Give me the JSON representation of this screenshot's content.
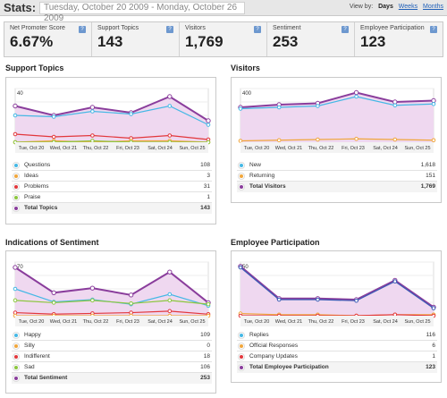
{
  "header": {
    "stats_label": "Stats:",
    "date_range": "Tuesday, October 20 2009 - Monday, October 26 2009",
    "view_by_label": "View by:",
    "view_days": "Days",
    "view_weeks": "Weeks",
    "view_months": "Months"
  },
  "kpis": [
    {
      "label": "Net Promoter Score",
      "value": "6.67%",
      "help": "?"
    },
    {
      "label": "Support Topics",
      "value": "143",
      "help": "?"
    },
    {
      "label": "Visitors",
      "value": "1,769",
      "help": "?"
    },
    {
      "label": "Sentiment",
      "value": "253",
      "help": "?"
    },
    {
      "label": "Employee Participation",
      "value": "123",
      "help": "?"
    }
  ],
  "colors": {
    "purple": "#8a3d9c",
    "blue": "#45b8e5",
    "orange": "#f0a63c",
    "red": "#e2373c",
    "green": "#8cc63f",
    "navy": "#3a5bb5",
    "fill": "#efd8f0"
  },
  "panels": {
    "support": {
      "title": "Support Topics",
      "legend": [
        {
          "label": "Questions",
          "value": "108",
          "color": "#45b8e5"
        },
        {
          "label": "Ideas",
          "value": "3",
          "color": "#f0a63c"
        },
        {
          "label": "Problems",
          "value": "31",
          "color": "#e2373c"
        },
        {
          "label": "Praise",
          "value": "1",
          "color": "#8cc63f"
        }
      ],
      "total_label": "Total Topics",
      "total_value": "143"
    },
    "visitors": {
      "title": "Visitors",
      "legend": [
        {
          "label": "New",
          "value": "1,618",
          "color": "#45b8e5"
        },
        {
          "label": "Returning",
          "value": "151",
          "color": "#f0a63c"
        }
      ],
      "total_label": "Total Visitors",
      "total_value": "1,769"
    },
    "sentiment": {
      "title": "Indications of Sentiment",
      "legend": [
        {
          "label": "Happy",
          "value": "109",
          "color": "#45b8e5"
        },
        {
          "label": "Silly",
          "value": "0",
          "color": "#f0a63c"
        },
        {
          "label": "Indifferent",
          "value": "18",
          "color": "#e2373c"
        },
        {
          "label": "Sad",
          "value": "106",
          "color": "#8cc63f"
        }
      ],
      "total_label": "Total Sentiment",
      "total_value": "253"
    },
    "employee": {
      "title": "Employee Participation",
      "legend": [
        {
          "label": "Replies",
          "value": "116",
          "color": "#45b8e5"
        },
        {
          "label": "Official Responses",
          "value": "6",
          "color": "#f0a63c"
        },
        {
          "label": "Company Updates",
          "value": "1",
          "color": "#e2373c"
        }
      ],
      "total_label": "Total Employee Participation",
      "total_value": "123"
    }
  },
  "chart_data": [
    {
      "type": "area",
      "categories": [
        "Tue, Oct 20",
        "Wed, Oct 21",
        "Thu, Oct 22",
        "Fri, Oct 23",
        "Sat, Oct 24",
        "Sun, Oct 25"
      ],
      "y_ticks": [
        "40",
        "0"
      ],
      "ylim": [
        0,
        40
      ],
      "series": [
        {
          "name": "Total Topics",
          "values": [
            27,
            20,
            26,
            22,
            34,
            16
          ],
          "color": "#8a3d9c",
          "fill": true
        },
        {
          "name": "Questions",
          "values": [
            20,
            19,
            23,
            21,
            27,
            13
          ],
          "color": "#45b8e5"
        },
        {
          "name": "Problems",
          "values": [
            6,
            4,
            5,
            3,
            5,
            2
          ],
          "color": "#e2373c"
        },
        {
          "name": "Ideas",
          "values": [
            0,
            1,
            0,
            1,
            1,
            0
          ],
          "color": "#f0a63c"
        },
        {
          "name": "Praise",
          "values": [
            0,
            0,
            1,
            0,
            0,
            0
          ],
          "color": "#8cc63f"
        }
      ]
    },
    {
      "type": "area",
      "categories": [
        "Tue, Oct 20",
        "Wed, Oct 21",
        "Thu, Oct 22",
        "Fri, Oct 23",
        "Sat, Oct 24",
        "Sun, Oct 25"
      ],
      "y_ticks": [
        "400",
        "200",
        "0"
      ],
      "ylim": [
        0,
        400
      ],
      "series": [
        {
          "name": "Total Visitors",
          "values": [
            260,
            280,
            290,
            370,
            300,
            310
          ],
          "color": "#8a3d9c",
          "fill": true
        },
        {
          "name": "New",
          "values": [
            250,
            260,
            270,
            340,
            275,
            285
          ],
          "color": "#45b8e5"
        },
        {
          "name": "Returning",
          "values": [
            10,
            15,
            20,
            25,
            20,
            15
          ],
          "color": "#f0a63c"
        }
      ]
    },
    {
      "type": "area",
      "categories": [
        "Tue, Oct 20",
        "Wed, Oct 21",
        "Thu, Oct 22",
        "Fri, Oct 23",
        "Sat, Oct 24",
        "Sun, Oct 25"
      ],
      "y_ticks": [
        "70",
        "0"
      ],
      "ylim": [
        0,
        70
      ],
      "series": [
        {
          "name": "Total Sentiment",
          "values": [
            63,
            30,
            36,
            27,
            57,
            17
          ],
          "color": "#8a3d9c",
          "fill": true
        },
        {
          "name": "Happy",
          "values": [
            35,
            18,
            21,
            15,
            28,
            13
          ],
          "color": "#45b8e5"
        },
        {
          "name": "Sad",
          "values": [
            20,
            17,
            20,
            16,
            20,
            15
          ],
          "color": "#8cc63f"
        },
        {
          "name": "Indifferent",
          "values": [
            4,
            2,
            3,
            4,
            6,
            2
          ],
          "color": "#e2373c"
        },
        {
          "name": "Silly",
          "values": [
            0,
            0,
            0,
            0,
            0,
            0
          ],
          "color": "#f0a63c"
        }
      ]
    },
    {
      "type": "area",
      "categories": [
        "Tue, Oct 20",
        "Wed, Oct 21",
        "Thu, Oct 22",
        "Fri, Oct 23",
        "Sat, Oct 24",
        "Sun, Oct 25"
      ],
      "y_ticks": [
        "50",
        "0"
      ],
      "ylim": [
        0,
        50
      ],
      "series": [
        {
          "name": "Total Employee Participation",
          "values": [
            46,
            16,
            16,
            15,
            33,
            8
          ],
          "color": "#8a3d9c",
          "fill": true
        },
        {
          "name": "Replies",
          "values": [
            45,
            15,
            15,
            14,
            32,
            7
          ],
          "color": "#3a5bb5"
        },
        {
          "name": "Official Responses",
          "values": [
            2,
            1,
            1,
            0,
            1,
            1
          ],
          "color": "#f0a63c"
        },
        {
          "name": "Company Updates",
          "values": [
            0,
            0,
            0,
            0,
            1,
            0
          ],
          "color": "#e2373c"
        }
      ]
    }
  ]
}
